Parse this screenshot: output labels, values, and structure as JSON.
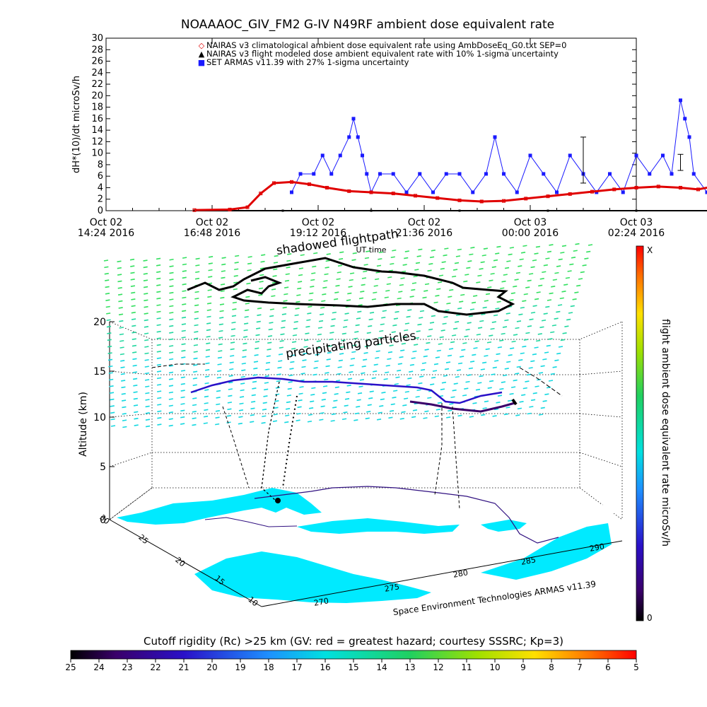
{
  "top_chart": {
    "title": "NOAAAOC_GIV_FM2 G-IV    N49RF   ambient dose equivalent rate",
    "ylabel": "dH*(10)/dt microSv/h",
    "xlabel": "UT time",
    "yticks": [
      "0",
      "2",
      "4",
      "6",
      "8",
      "10",
      "12",
      "14",
      "16",
      "18",
      "20",
      "22",
      "24",
      "26",
      "28",
      "30"
    ],
    "xticks": [
      {
        "top": "Oct 02",
        "bottom": "14:24 2016"
      },
      {
        "top": "Oct 02",
        "bottom": "16:48 2016"
      },
      {
        "top": "Oct 02",
        "bottom": "19:12 2016"
      },
      {
        "top": "Oct 02",
        "bottom": "21:36 2016"
      },
      {
        "top": "Oct 03",
        "bottom": "00:00 2016"
      },
      {
        "top": "Oct 03",
        "bottom": "02:24 2016"
      }
    ],
    "legend": [
      {
        "marker": "◇",
        "color": "#e00000",
        "text": "NAIRAS v3 climatological ambient dose equivalent rate using AmbDoseEq_G0.txt SEP=0"
      },
      {
        "marker": "▲",
        "color": "#000000",
        "text": "NAIRAS v3 flight modeled dose ambient equivalent rate with 10% 1-sigma uncertainty"
      },
      {
        "marker": "■",
        "color": "#1a1aff",
        "text": "SET ARMAS v11.39 with 27% 1-sigma uncertainty"
      }
    ]
  },
  "chart_data": {
    "type": "scatter",
    "title": "NOAAAOC_GIV_FM2 G-IV    N49RF   ambient dose equivalent rate",
    "xlabel": "UT time",
    "ylabel": "dH*(10)/dt microSv/h",
    "ylim": [
      0,
      30
    ],
    "xlim": [
      "Oct 02 14:24 2016",
      "Oct 03 02:24 2016"
    ],
    "x_unit": "hours since Oct 02 14:24 2016",
    "series": [
      {
        "name": "NAIRAS v3 climatological ambient dose equivalent rate using AmbDoseEq_G0.txt SEP=0",
        "color": "#e00000",
        "points": [
          [
            2.0,
            0.1
          ],
          [
            2.8,
            0.2
          ],
          [
            3.2,
            0.6
          ],
          [
            3.5,
            3.0
          ],
          [
            3.8,
            4.8
          ],
          [
            4.2,
            5.0
          ],
          [
            4.6,
            4.6
          ],
          [
            5.0,
            4.0
          ],
          [
            5.5,
            3.4
          ],
          [
            6.0,
            3.2
          ],
          [
            6.5,
            3.0
          ],
          [
            7.0,
            2.6
          ],
          [
            7.5,
            2.2
          ],
          [
            8.0,
            1.8
          ],
          [
            8.5,
            1.6
          ],
          [
            9.0,
            1.7
          ],
          [
            9.5,
            2.1
          ],
          [
            10.0,
            2.5
          ],
          [
            10.5,
            2.9
          ],
          [
            11.0,
            3.3
          ],
          [
            11.5,
            3.7
          ],
          [
            12.0,
            4.0
          ],
          [
            12.5,
            4.2
          ],
          [
            13.0,
            4.0
          ],
          [
            13.4,
            3.7
          ],
          [
            13.8,
            4.3
          ],
          [
            14.2,
            4.6
          ],
          [
            14.6,
            4.2
          ],
          [
            15.0,
            3.7
          ],
          [
            15.4,
            4.3
          ],
          [
            15.7,
            4.6
          ],
          [
            15.9,
            3.0
          ],
          [
            16.2,
            0.8
          ],
          [
            16.6,
            0.3
          ],
          [
            17.0,
            0.1
          ]
        ]
      },
      {
        "name": "NAIRAS v3 flight modeled dose ambient equivalent rate with 10% 1-sigma uncertainty",
        "color": "#000000",
        "points": [
          [
            2.0,
            0.0
          ],
          [
            4.0,
            0.0
          ],
          [
            6.0,
            0.0
          ],
          [
            8.0,
            0.0
          ],
          [
            10.0,
            0.0
          ],
          [
            12.0,
            0.0
          ],
          [
            14.0,
            0.0
          ],
          [
            16.0,
            0.0
          ],
          [
            17.0,
            0.0
          ]
        ]
      },
      {
        "name": "SET ARMAS v11.39 with 27% 1-sigma uncertainty",
        "color": "#1a1aff",
        "points": [
          [
            4.2,
            3.2
          ],
          [
            4.4,
            6.4
          ],
          [
            4.7,
            6.4
          ],
          [
            4.9,
            9.6
          ],
          [
            5.1,
            6.4
          ],
          [
            5.3,
            9.6
          ],
          [
            5.5,
            12.8
          ],
          [
            5.6,
            16.0
          ],
          [
            5.7,
            12.8
          ],
          [
            5.8,
            9.6
          ],
          [
            5.9,
            6.4
          ],
          [
            6.0,
            3.2
          ],
          [
            6.2,
            6.4
          ],
          [
            6.5,
            6.4
          ],
          [
            6.8,
            3.2
          ],
          [
            7.1,
            6.4
          ],
          [
            7.4,
            3.2
          ],
          [
            7.7,
            6.4
          ],
          [
            8.0,
            6.4
          ],
          [
            8.3,
            3.2
          ],
          [
            8.6,
            6.4
          ],
          [
            8.8,
            12.8
          ],
          [
            9.0,
            6.4
          ],
          [
            9.3,
            3.2
          ],
          [
            9.6,
            9.6
          ],
          [
            9.9,
            6.4
          ],
          [
            10.2,
            3.2
          ],
          [
            10.5,
            9.6
          ],
          [
            10.8,
            6.4
          ],
          [
            11.1,
            3.2
          ],
          [
            11.4,
            6.4
          ],
          [
            11.7,
            3.2
          ],
          [
            12.0,
            9.6
          ],
          [
            12.3,
            6.4
          ],
          [
            12.6,
            9.6
          ],
          [
            12.8,
            6.4
          ],
          [
            13.0,
            19.2
          ],
          [
            13.1,
            16.0
          ],
          [
            13.2,
            12.8
          ],
          [
            13.3,
            6.4
          ],
          [
            13.6,
            3.2
          ],
          [
            13.9,
            6.4
          ],
          [
            14.1,
            9.6
          ],
          [
            14.4,
            12.8
          ],
          [
            14.7,
            9.6
          ],
          [
            15.0,
            6.4
          ],
          [
            15.2,
            12.8
          ],
          [
            15.4,
            9.6
          ],
          [
            15.6,
            6.4
          ],
          [
            15.8,
            3.2
          ]
        ]
      }
    ]
  },
  "globe_chart": {
    "title": "shadowed flightpath",
    "annotation": "precipitating particles",
    "zlabel": "Altitude (km)",
    "zticks": [
      "0",
      "5",
      "10",
      "15",
      "20"
    ],
    "lat_ticks": [
      "10",
      "15",
      "20",
      "25",
      "30"
    ],
    "lon_ticks": [
      "270",
      "275",
      "280",
      "285",
      "290"
    ],
    "credit": "Space Environment Technologies ARMAS v11.39",
    "side_colorbar": {
      "label": "flight ambient dose equivalent rate microSv/h",
      "top": "X",
      "bottom": "0"
    }
  },
  "bottom_colorbar": {
    "title": "Cutoff rigidity (Rc) >25 km (GV: red = greatest hazard; courtesy SSSRC; Kp=3)",
    "ticks": [
      "25",
      "24",
      "23",
      "22",
      "21",
      "20",
      "19",
      "18",
      "17",
      "16",
      "15",
      "14",
      "13",
      "12",
      "11",
      "10",
      "9",
      "8",
      "7",
      "6",
      "5"
    ]
  }
}
